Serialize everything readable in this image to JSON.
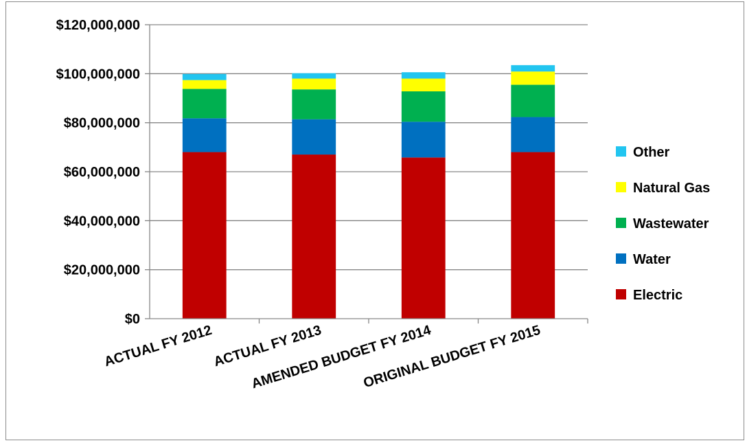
{
  "chart_data": {
    "type": "bar",
    "stacked": true,
    "categories": [
      "ACTUAL FY 2012",
      "ACTUAL FY 2013",
      "AMENDED BUDGET FY 2014",
      "ORIGINAL BUDGET FY 2015"
    ],
    "series": [
      {
        "name": "Electric",
        "color": "#C00000",
        "values": [
          68000000,
          67000000,
          65800000,
          68000000
        ]
      },
      {
        "name": "Water",
        "color": "#0070C0",
        "values": [
          13800000,
          14400000,
          14600000,
          14300000
        ]
      },
      {
        "name": "Wastewater",
        "color": "#00B050",
        "values": [
          12000000,
          12200000,
          12400000,
          13200000
        ]
      },
      {
        "name": "Natural Gas",
        "color": "#FFFF00",
        "values": [
          3600000,
          4400000,
          5200000,
          5400000
        ]
      },
      {
        "name": "Other",
        "color": "#22C5F0",
        "values": [
          2500000,
          2200000,
          2600000,
          2600000
        ]
      }
    ],
    "ylim": [
      0,
      120000000
    ],
    "yticks": [
      0,
      20000000,
      40000000,
      60000000,
      80000000,
      100000000,
      120000000
    ],
    "ytick_labels": [
      "$0",
      "$20,000,000",
      "$40,000,000",
      "$60,000,000",
      "$80,000,000",
      "$100,000,000",
      "$120,000,000"
    ],
    "grid": true,
    "legend_position": "right",
    "legend_order": [
      "Other",
      "Natural Gas",
      "Wastewater",
      "Water",
      "Electric"
    ]
  }
}
